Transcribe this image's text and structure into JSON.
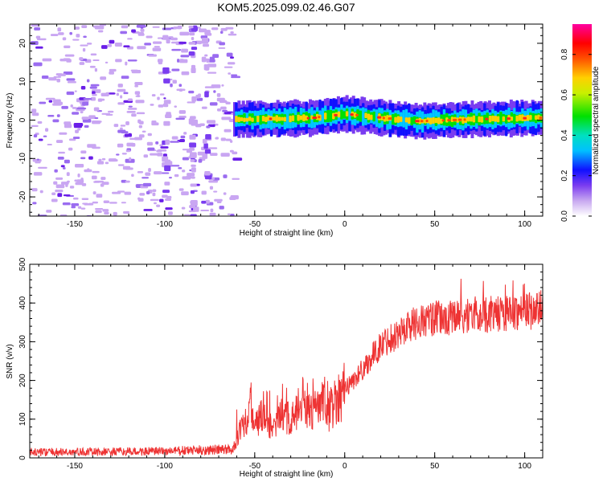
{
  "chart_data": [
    {
      "type": "heatmap",
      "title": "KOM5.2025.099.02.46.G07",
      "xlabel": "Height of straight line (km)",
      "ylabel": "Frequency (Hz)",
      "xlim": [
        -175,
        110
      ],
      "ylim": [
        -25,
        25
      ],
      "x_ticks": [
        "-150",
        "-100",
        "-50",
        "0",
        "50",
        "100"
      ],
      "y_ticks": [
        "-20",
        "-10",
        "0",
        "10",
        "20"
      ],
      "colorbar": {
        "label": "Normalized spectral amplitude",
        "range": [
          0,
          0.95
        ],
        "ticks": [
          "0.0",
          "0.2",
          "0.4",
          "0.6",
          "0.8"
        ]
      },
      "noise_region_km": [
        -175,
        -62
      ],
      "signal_band": {
        "x_start_km": -62,
        "x_end_km": 110,
        "center_freq_points": [
          [
            -62,
            0.2
          ],
          [
            -20,
            0.5
          ],
          [
            0,
            1.6
          ],
          [
            20,
            0.6
          ],
          [
            40,
            -0.3
          ],
          [
            70,
            0.2
          ],
          [
            100,
            0.5
          ],
          [
            110,
            0.6
          ]
        ]
      }
    },
    {
      "type": "line",
      "xlabel": "Height of straight line (km)",
      "ylabel": "SNR (v/v)",
      "xlim": [
        -175,
        110
      ],
      "ylim": [
        0,
        500
      ],
      "x_ticks": [
        "-150",
        "-100",
        "-50",
        "0",
        "50",
        "100"
      ],
      "y_ticks": [
        "0",
        "100",
        "200",
        "300",
        "400",
        "500"
      ],
      "series_color": "#ee3333",
      "x": [
        -175,
        -150,
        -120,
        -100,
        -80,
        -62,
        -58,
        -55,
        -52,
        -48,
        -45,
        -40,
        -35,
        -30,
        -25,
        -20,
        -15,
        -12,
        -10,
        -5,
        0,
        5,
        10,
        15,
        20,
        25,
        30,
        35,
        40,
        50,
        60,
        70,
        80,
        90,
        100,
        105,
        110
      ],
      "y": [
        15,
        15,
        16,
        17,
        20,
        22,
        80,
        100,
        130,
        90,
        120,
        70,
        110,
        100,
        120,
        120,
        130,
        140,
        110,
        150,
        180,
        200,
        230,
        260,
        290,
        310,
        320,
        340,
        350,
        360,
        360,
        370,
        370,
        375,
        380,
        380,
        385
      ]
    }
  ]
}
